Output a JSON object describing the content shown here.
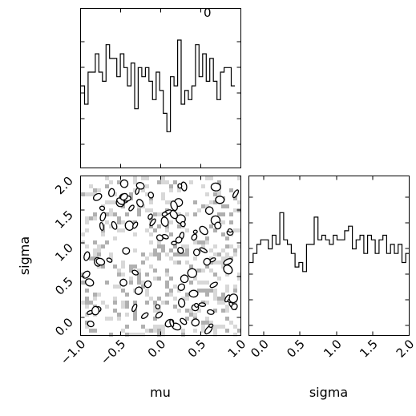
{
  "chart_data": [
    {
      "type": "histogram",
      "variable": "mu",
      "corner_label": "0",
      "xlim": [
        -1.0,
        1.0
      ],
      "bin_edges": [
        -1.0,
        0.96
      ],
      "counts": [
        38,
        34,
        41,
        41,
        45,
        41,
        39,
        47,
        44,
        44,
        40,
        45,
        42,
        38,
        43,
        33,
        42,
        40,
        42,
        39,
        35,
        41,
        37,
        32,
        28,
        40,
        38,
        48,
        34,
        37,
        35,
        38,
        47,
        40,
        45,
        39,
        44,
        39,
        35,
        41,
        42,
        42,
        38
      ]
    },
    {
      "type": "heatmap",
      "variables": [
        "mu",
        "sigma"
      ],
      "xlabel": "mu",
      "ylabel": "sigma",
      "xlim": [
        -1.0,
        1.0
      ],
      "ylim": [
        -0.2,
        2.0
      ],
      "xticks": [
        "−1.0",
        "−0.5",
        "0.0",
        "0.5",
        "1.0"
      ],
      "yticks": [
        "0.0",
        "0.5",
        "1.0",
        "1.5",
        "2.0"
      ],
      "grid": false,
      "cmap": "gray",
      "contours": true
    },
    {
      "type": "histogram",
      "variable": "sigma",
      "xlabel": "sigma",
      "xlim": [
        -0.2,
        2.0
      ],
      "xticks": [
        "0.0",
        "0.5",
        "1.0",
        "1.5",
        "2.0"
      ],
      "counts": [
        36,
        38,
        40,
        41,
        41,
        39,
        42,
        40,
        47,
        41,
        40,
        38,
        35,
        36,
        34,
        40,
        40,
        46,
        41,
        42,
        41,
        40,
        42,
        41,
        41,
        43,
        44,
        39,
        41,
        42,
        38,
        42,
        41,
        38,
        41,
        42,
        38,
        40,
        38,
        40,
        36,
        38
      ]
    }
  ],
  "colors": {
    "background": "#ffffff",
    "line": "#000000",
    "cell_light": "#d8d8d8",
    "cell_mid": "#b0b0b0"
  }
}
